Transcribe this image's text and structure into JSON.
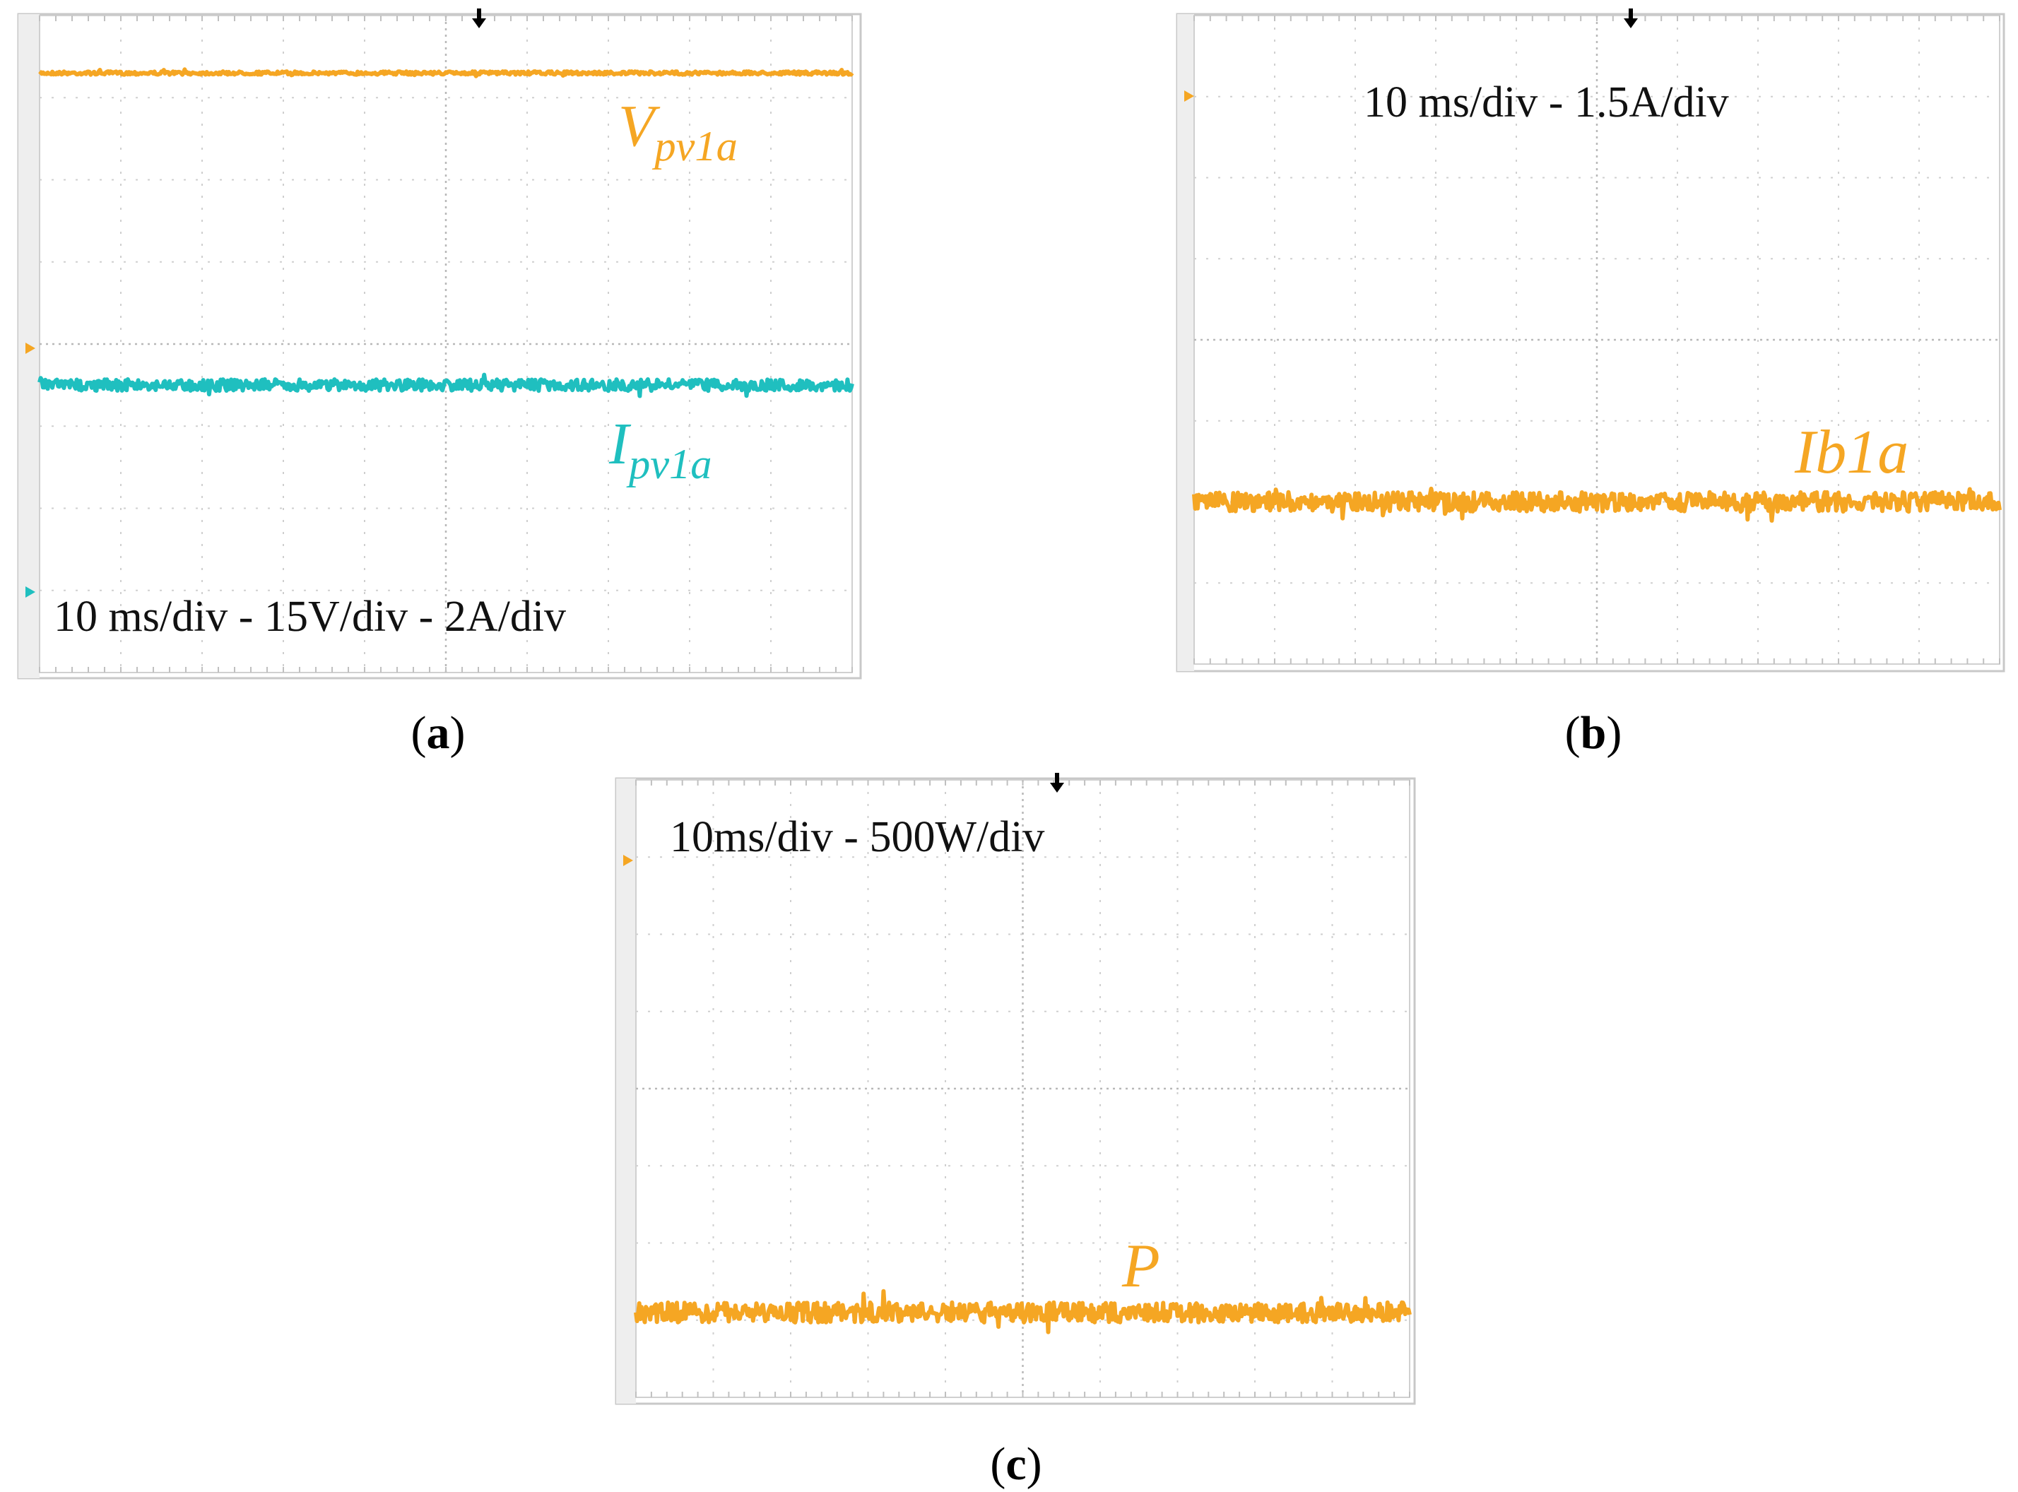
{
  "figure": {
    "panels": [
      {
        "id": "a",
        "caption_open": "(",
        "caption_letter": "a",
        "caption_close": ")",
        "scale_text": "10 ms/div - 15V/div - 2A/div",
        "traces": [
          {
            "label_main": "V",
            "label_sub": "pv1a",
            "color": "#f5a623"
          },
          {
            "label_main": "I",
            "label_sub": "pv1a",
            "color": "#1fbfbf"
          }
        ]
      },
      {
        "id": "b",
        "caption_open": "(",
        "caption_letter": "b",
        "caption_close": ")",
        "scale_text": "10 ms/div -  1.5A/div",
        "traces": [
          {
            "label_main": "Ib1a",
            "label_sub": "",
            "color": "#f5a623"
          }
        ]
      },
      {
        "id": "c",
        "caption_open": "(",
        "caption_letter": "c",
        "caption_close": ")",
        "scale_text": "10ms/div - 500W/div",
        "traces": [
          {
            "label_main": "P",
            "label_sub": "",
            "color": "#f5a623"
          }
        ]
      }
    ]
  },
  "chart_data": [
    {
      "type": "line",
      "panel": "a",
      "title": "",
      "xlabel": "",
      "ylabel": "",
      "grid": true,
      "divisions": {
        "x": 10,
        "y": 8
      },
      "x_scale": "10 ms/div",
      "series": [
        {
          "name": "Vpv1a",
          "scale": "15V/div",
          "level_div": 7.3,
          "noise_div": 0.02,
          "color": "#f5a623"
        },
        {
          "name": "Ipv1a",
          "scale": "2A/div",
          "level_div": 3.5,
          "noise_div": 0.07,
          "color": "#1fbfbf"
        }
      ]
    },
    {
      "type": "line",
      "panel": "b",
      "title": "",
      "xlabel": "",
      "ylabel": "",
      "grid": true,
      "divisions": {
        "x": 10,
        "y": 8
      },
      "x_scale": "10 ms/div",
      "series": [
        {
          "name": "Ib1a",
          "scale": "1.5A/div",
          "level_div": 2.0,
          "noise_div": 0.12,
          "color": "#f5a623"
        }
      ]
    },
    {
      "type": "line",
      "panel": "c",
      "title": "",
      "xlabel": "",
      "ylabel": "",
      "grid": true,
      "divisions": {
        "x": 10,
        "y": 8
      },
      "x_scale": "10 ms/div",
      "series": [
        {
          "name": "P",
          "scale": "500W/div",
          "level_div": 1.1,
          "noise_div": 0.13,
          "color": "#f5a623"
        }
      ]
    }
  ]
}
